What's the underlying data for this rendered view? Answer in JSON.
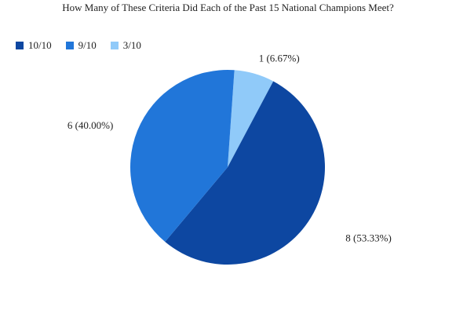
{
  "chart_data": {
    "type": "pie",
    "title": "How Many of These Criteria Did Each of the Past 15 National Champions Meet?",
    "legend_position": "top-left",
    "slices": [
      {
        "label": "10/10",
        "value": 8,
        "percent_label": "8 (53.33%)",
        "color": "#0d47a1"
      },
      {
        "label": "9/10",
        "value": 6,
        "percent_label": "6 (40.00%)",
        "color": "#2176d9"
      },
      {
        "label": "3/10",
        "value": 1,
        "percent_label": "1 (6.67%)",
        "color": "#90caf9"
      }
    ]
  }
}
